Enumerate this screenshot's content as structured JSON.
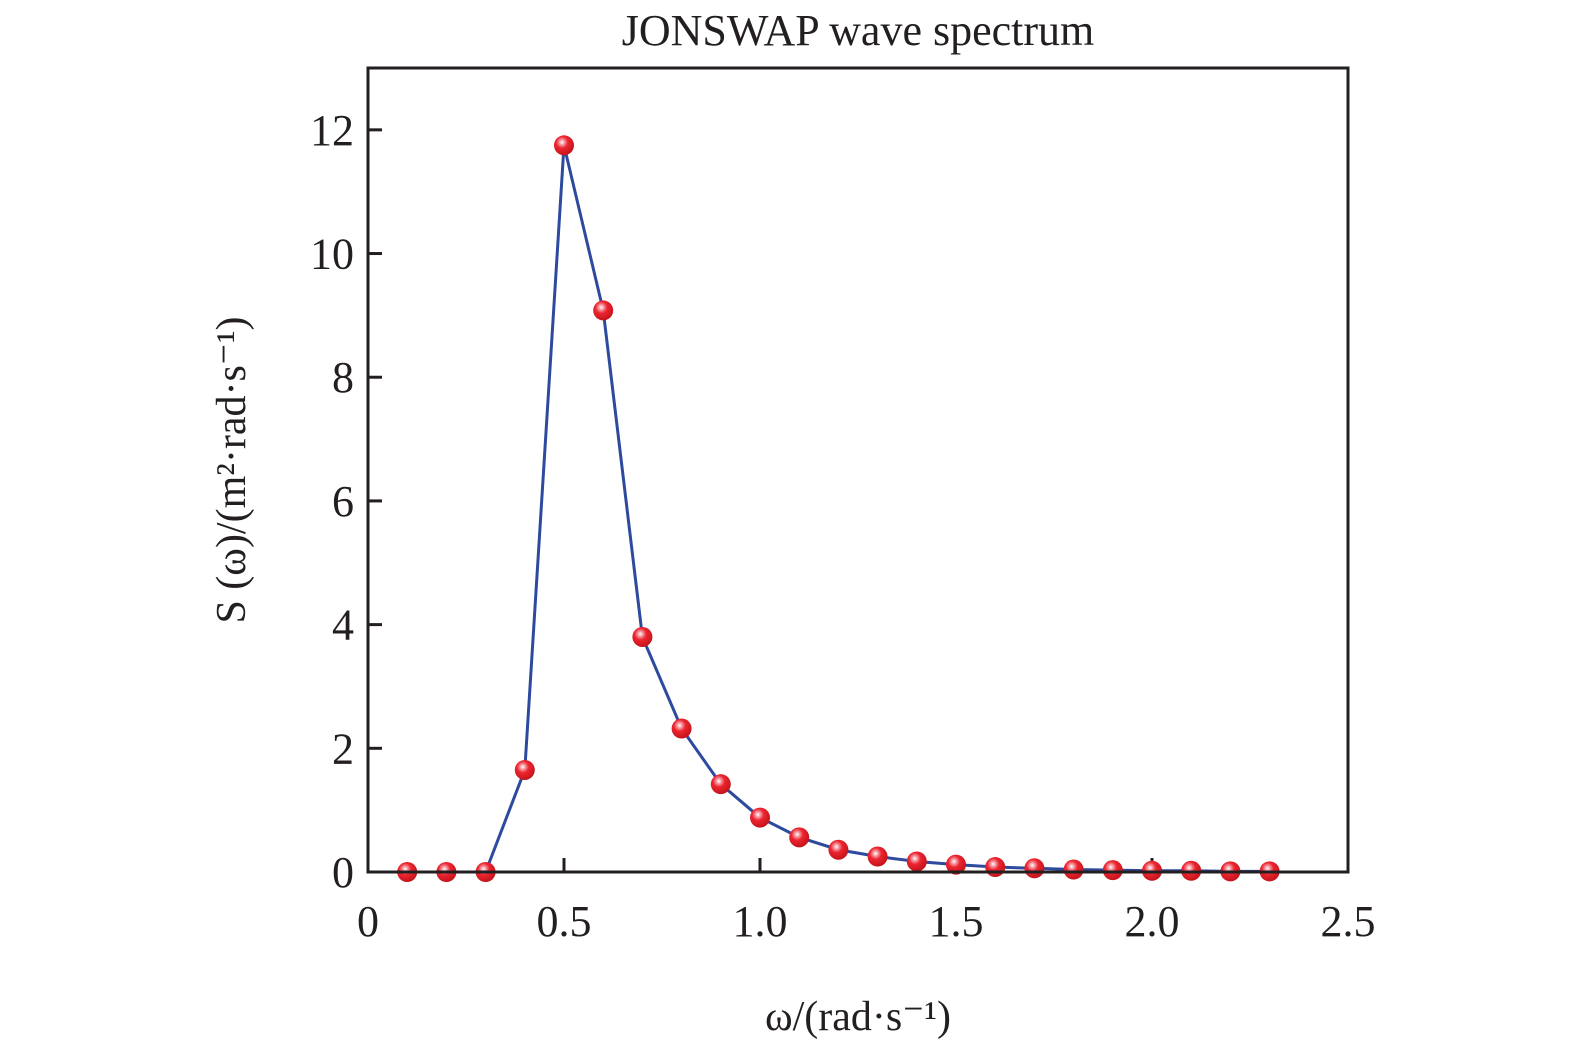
{
  "chart_data": {
    "type": "line",
    "title": "JONSWAP wave spectrum",
    "xlabel": "ω/(rad·s⁻¹)",
    "ylabel": "S (ω)/(m²·rad·s⁻¹)",
    "xlim": [
      0,
      2.5
    ],
    "ylim": [
      0,
      13
    ],
    "xticks": [
      0,
      0.5,
      1.0,
      1.5,
      2.0,
      2.5
    ],
    "xtick_labels": [
      "0",
      "0.5",
      "1.0",
      "1.5",
      "2.0",
      "2.5"
    ],
    "yticks": [
      0,
      2,
      4,
      6,
      8,
      10,
      12
    ],
    "ytick_labels": [
      "0",
      "2",
      "4",
      "6",
      "8",
      "10",
      "12"
    ],
    "grid": false,
    "series": [
      {
        "name": "JONSWAP",
        "line_color": "#2e4a9e",
        "marker_color": "#e8202a",
        "x": [
          0.1,
          0.2,
          0.3,
          0.4,
          0.5,
          0.6,
          0.7,
          0.8,
          0.9,
          1.0,
          1.1,
          1.2,
          1.3,
          1.4,
          1.5,
          1.6,
          1.7,
          1.8,
          1.9,
          2.0,
          2.1,
          2.2,
          2.3
        ],
        "y": [
          0,
          0,
          0,
          1.65,
          11.75,
          9.08,
          3.8,
          2.32,
          1.42,
          0.88,
          0.56,
          0.36,
          0.25,
          0.17,
          0.12,
          0.08,
          0.06,
          0.04,
          0.03,
          0.02,
          0.02,
          0.01,
          0.01
        ]
      }
    ]
  }
}
